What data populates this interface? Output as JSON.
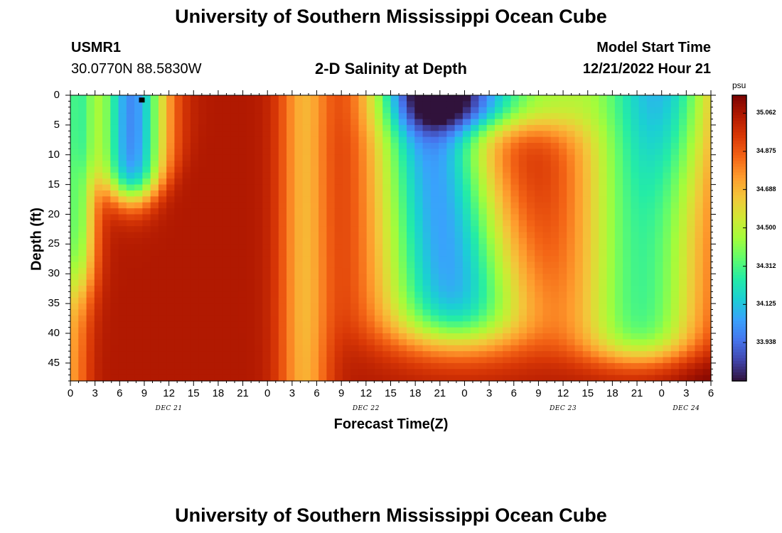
{
  "chart_data": {
    "type": "heatmap",
    "title": "University of Southern Mississippi Ocean Cube",
    "subtitle": "2-D Salinity at Depth",
    "station": {
      "id": "USMR1",
      "position": "30.0770N  88.5830W"
    },
    "model_start": {
      "label": "Model Start Time",
      "value": "12/21/2022 Hour 21"
    },
    "xlabel": "Forecast Time(Z)",
    "ylabel": "Depth (ft)",
    "x_hours_range": [
      0,
      78
    ],
    "x_tick_labels": [
      "0",
      "3",
      "6",
      "9",
      "12",
      "15",
      "18",
      "21",
      "0",
      "3",
      "6",
      "9",
      "12",
      "15",
      "18",
      "21",
      "0",
      "3",
      "6",
      "9",
      "12",
      "15",
      "18",
      "21",
      "0",
      "3",
      "6"
    ],
    "day_labels": [
      {
        "label": "DEC 21",
        "hour": 12
      },
      {
        "label": "DEC 22",
        "hour": 36
      },
      {
        "label": "DEC 23",
        "hour": 60
      },
      {
        "label": "DEC 24",
        "hour": 75
      }
    ],
    "y_depth_range": [
      0,
      48
    ],
    "y_tick_labels": [
      "0",
      "5",
      "10",
      "15",
      "20",
      "25",
      "30",
      "35",
      "40",
      "45"
    ],
    "colorbar": {
      "unit": "psu",
      "range": [
        33.75,
        35.15
      ],
      "tick_labels": [
        "35.062",
        "34.875",
        "34.688",
        "34.500",
        "34.312",
        "34.125",
        "33.938"
      ],
      "colors": [
        "#30123b",
        "#4145ab",
        "#4675ed",
        "#39a2fc",
        "#1bcfd4",
        "#24eca6",
        "#61fc6c",
        "#a4fc3b",
        "#d1e834",
        "#f3c63a",
        "#fe9b2d",
        "#f36315",
        "#d93806",
        "#b11901",
        "#7a0402"
      ]
    },
    "marker": {
      "hour": 8.7,
      "depth_ft": 0.8
    },
    "value_field_description": "salinity (psu) estimated from colour: fresher (~33.8) near-surface lens at hours 3-12, high (~35.0) deep water at hours 15-24 and 54-60, fresh lens hours 40-48 and 68-72"
  }
}
